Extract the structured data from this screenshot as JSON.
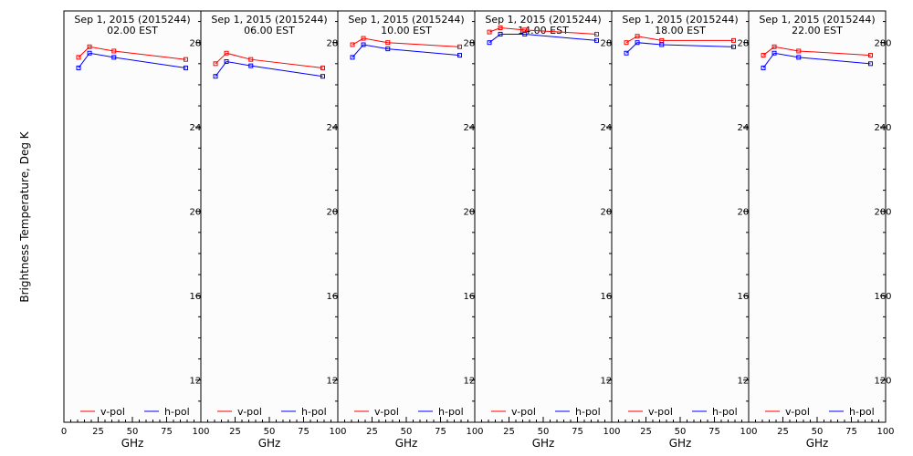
{
  "chart_data": {
    "type": "line",
    "ylabel": "Brightness Temperature, Deg K",
    "xlabel": "GHz",
    "xlim": [
      0,
      100
    ],
    "ylim": [
      100,
      295
    ],
    "x_ticks": [
      "0",
      "25",
      "50",
      "75",
      "100"
    ],
    "y_ticks": [
      "120",
      "160",
      "200",
      "240",
      "280"
    ],
    "x": [
      10.7,
      18.7,
      36.5,
      89.0
    ],
    "colors": {
      "v-pol": "#ff0000",
      "h-pol": "#0000ff"
    },
    "panels": [
      {
        "title_line1": "Sep  1, 2015 (2015244)",
        "title_line2": "02.00 EST",
        "series": [
          {
            "name": "v-pol",
            "values": [
              273,
              278,
              276,
              272
            ]
          },
          {
            "name": "h-pol",
            "values": [
              268,
              275,
              273,
              268
            ]
          }
        ]
      },
      {
        "title_line1": "Sep  1, 2015 (2015244)",
        "title_line2": "06.00 EST",
        "series": [
          {
            "name": "v-pol",
            "values": [
              270,
              275,
              272,
              268
            ]
          },
          {
            "name": "h-pol",
            "values": [
              264,
              271,
              269,
              264
            ]
          }
        ]
      },
      {
        "title_line1": "Sep  1, 2015 (2015244)",
        "title_line2": "10.00 EST",
        "series": [
          {
            "name": "v-pol",
            "values": [
              279,
              282,
              280,
              278
            ]
          },
          {
            "name": "h-pol",
            "values": [
              273,
              279,
              277,
              274
            ]
          }
        ]
      },
      {
        "title_line1": "Sep  1, 2015 (2015244)",
        "title_line2": "14.00 EST",
        "series": [
          {
            "name": "v-pol",
            "values": [
              285,
              287,
              286,
              284
            ]
          },
          {
            "name": "h-pol",
            "values": [
              280,
              284,
              284,
              281
            ]
          }
        ]
      },
      {
        "title_line1": "Sep  1, 2015 (2015244)",
        "title_line2": "18.00 EST",
        "series": [
          {
            "name": "v-pol",
            "values": [
              280,
              283,
              281,
              281
            ]
          },
          {
            "name": "h-pol",
            "values": [
              275,
              280,
              279,
              278
            ]
          }
        ]
      },
      {
        "title_line1": "Sep  1, 2015 (2015244)",
        "title_line2": "22.00 EST",
        "series": [
          {
            "name": "v-pol",
            "values": [
              274,
              278,
              276,
              274
            ]
          },
          {
            "name": "h-pol",
            "values": [
              268,
              275,
              273,
              270
            ]
          }
        ]
      }
    ]
  }
}
